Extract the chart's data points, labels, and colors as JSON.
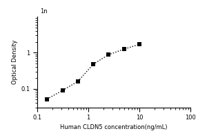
{
  "x": [
    0.156,
    0.313,
    0.625,
    1.25,
    2.5,
    5.0,
    10.0
  ],
  "y": [
    0.052,
    0.09,
    0.16,
    0.48,
    0.88,
    1.25,
    1.7
  ],
  "marker": "s",
  "marker_color": "black",
  "marker_size": 4,
  "line_style": ":",
  "line_color": "black",
  "line_width": 1.0,
  "xlabel": "Human CLDN5 concentration(ng/mL)",
  "ylabel": "Optical Density",
  "xlabel_fontsize": 6,
  "ylabel_fontsize": 6,
  "tick_labelsize": 6,
  "xlim": [
    0.1,
    100
  ],
  "ylim": [
    0.03,
    10
  ],
  "xticks_major": [
    0.1,
    1,
    10,
    100
  ],
  "yticks_major": [
    0.1,
    1
  ],
  "background_color": "#ffffff",
  "axes_color": "#000000"
}
